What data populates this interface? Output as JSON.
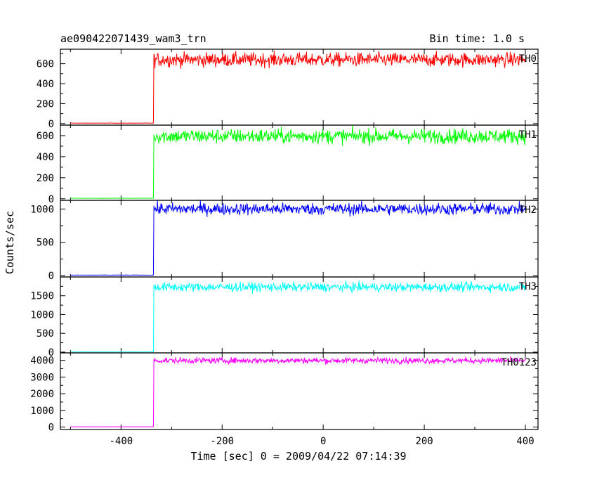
{
  "chart_data": {
    "type": "line",
    "title": "ae090422071439_wam3_trn",
    "subtitle": "Bin time: 1.0 s",
    "xlabel": "Time [sec] 0 = 2009/04/22 07:14:39",
    "ylabel": "Counts/sec",
    "xlim": [
      -520,
      425
    ],
    "x_ticks": [
      -400,
      -200,
      0,
      200,
      400
    ],
    "trigger_time": -335,
    "data_start": -500,
    "data_end": 400,
    "panels": [
      {
        "name": "TH0",
        "color": "#ff0000",
        "ylim": [
          -15,
          745
        ],
        "y_ticks": [
          0,
          200,
          400,
          600
        ],
        "baseline": 5,
        "plateau": 640,
        "noise": 35
      },
      {
        "name": "TH1",
        "color": "#00ff00",
        "ylim": [
          -15,
          700
        ],
        "y_ticks": [
          0,
          200,
          400,
          600
        ],
        "baseline": 5,
        "plateau": 595,
        "noise": 35
      },
      {
        "name": "TH2",
        "color": "#0000ff",
        "ylim": [
          -20,
          1130
        ],
        "y_ticks": [
          0,
          500,
          1000
        ],
        "baseline": 8,
        "plateau": 1000,
        "noise": 45
      },
      {
        "name": "TH3",
        "color": "#00ffff",
        "ylim": [
          -20,
          2000
        ],
        "y_ticks": [
          0,
          500,
          1000,
          1500
        ],
        "baseline": 5,
        "plateau": 1730,
        "noise": 60
      },
      {
        "name": "TH0123",
        "color": "#ff00ff",
        "ylim": [
          -150,
          4450
        ],
        "y_ticks": [
          0,
          1000,
          2000,
          3000,
          4000
        ],
        "baseline": 15,
        "plateau": 3990,
        "noise": 90
      }
    ]
  }
}
